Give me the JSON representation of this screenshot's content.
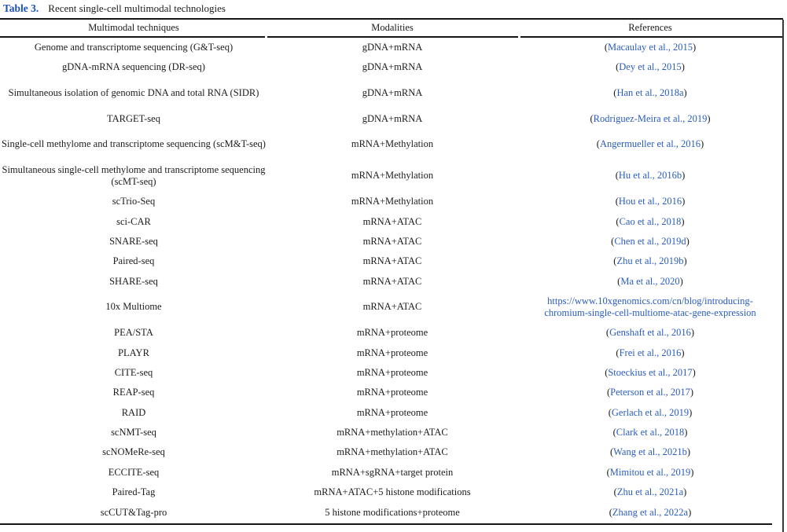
{
  "title": {
    "label": "Table 3.",
    "text": "Recent single-cell multimodal technologies"
  },
  "colors": {
    "link_blue": "#2a5cbf",
    "title_blue": "#1b50be",
    "text": "#1c1c1c",
    "rule": "#151515"
  },
  "table": {
    "headers": [
      "Multimodal techniques",
      "Modalities",
      "References"
    ],
    "rows": [
      {
        "technique": "Genome and transcriptome sequencing (G&T-seq)",
        "modality": "gDNA+mRNA",
        "ref_prefix": "(",
        "ref_link": "Macaulay et al., 2015",
        "ref_suffix": ")",
        "two_line": false,
        "url": false
      },
      {
        "technique": "gDNA-mRNA sequencing (DR-seq)",
        "modality": "gDNA+mRNA",
        "ref_prefix": "(",
        "ref_link": "Dey et al., 2015",
        "ref_suffix": ")",
        "two_line": false,
        "url": false
      },
      {
        "technique": "Simultaneous isolation of genomic DNA and total RNA (SIDR)",
        "modality": "gDNA+mRNA",
        "ref_prefix": "(",
        "ref_link": "Han et al., 2018a",
        "ref_suffix": ")",
        "two_line": true,
        "url": false
      },
      {
        "technique": "TARGET-seq",
        "modality": "gDNA+mRNA",
        "ref_prefix": "(",
        "ref_link": "Rodriguez-Meira et al., 2019",
        "ref_suffix": ")",
        "two_line": false,
        "url": false
      },
      {
        "technique": "Single-cell methylome and transcriptome sequencing (scM&T-seq)",
        "modality": "mRNA+Methylation",
        "ref_prefix": "(",
        "ref_link": "Angermueller et al., 2016",
        "ref_suffix": ")",
        "two_line": true,
        "url": false
      },
      {
        "technique": "Simultaneous single-cell methylome and transcriptome sequencing (scMT-seq)",
        "modality": "mRNA+Methylation",
        "ref_prefix": "(",
        "ref_link": "Hu et al., 2016b",
        "ref_suffix": ")",
        "two_line": true,
        "url": false
      },
      {
        "technique": "scTrio-Seq",
        "modality": "mRNA+Methylation",
        "ref_prefix": "(",
        "ref_link": "Hou et al., 2016",
        "ref_suffix": ")",
        "two_line": false,
        "url": false
      },
      {
        "technique": "sci-CAR",
        "modality": "mRNA+ATAC",
        "ref_prefix": "(",
        "ref_link": "Cao et al., 2018",
        "ref_suffix": ")",
        "two_line": false,
        "url": false
      },
      {
        "technique": "SNARE-seq",
        "modality": "mRNA+ATAC",
        "ref_prefix": "(",
        "ref_link": "Chen et al., 2019d",
        "ref_suffix": ")",
        "two_line": false,
        "url": false
      },
      {
        "technique": "Paired-seq",
        "modality": "mRNA+ATAC",
        "ref_prefix": "(",
        "ref_link": "Zhu et al., 2019b",
        "ref_suffix": ")",
        "two_line": false,
        "url": false
      },
      {
        "technique": "SHARE-seq",
        "modality": "mRNA+ATAC",
        "ref_prefix": "(",
        "ref_link": "Ma et al., 2020",
        "ref_suffix": ")",
        "two_line": false,
        "url": false
      },
      {
        "technique": "10x Multiome",
        "modality": "mRNA+ATAC",
        "ref_prefix": "",
        "ref_link": "https://www.10xgenomics.com/cn/blog/introducing-chromium-single-cell-multiome-atac-gene-expression",
        "ref_suffix": "",
        "two_line": true,
        "url": true
      },
      {
        "technique": "PEA/STA",
        "modality": "mRNA+proteome",
        "ref_prefix": "(",
        "ref_link": "Genshaft et al., 2016",
        "ref_suffix": ")",
        "two_line": false,
        "url": false
      },
      {
        "technique": "PLAYR",
        "modality": "mRNA+proteome",
        "ref_prefix": "(",
        "ref_link": "Frei et al., 2016",
        "ref_suffix": ")",
        "two_line": false,
        "url": false
      },
      {
        "technique": "CITE-seq",
        "modality": "mRNA+proteome",
        "ref_prefix": "(",
        "ref_link": "Stoeckius et al., 2017",
        "ref_suffix": ")",
        "two_line": false,
        "url": false
      },
      {
        "technique": "REAP-seq",
        "modality": "mRNA+proteome",
        "ref_prefix": "(",
        "ref_link": "Peterson et al., 2017",
        "ref_suffix": ")",
        "two_line": false,
        "url": false
      },
      {
        "technique": "RAID",
        "modality": "mRNA+proteome",
        "ref_prefix": "(",
        "ref_link": "Gerlach et al., 2019",
        "ref_suffix": ")",
        "two_line": false,
        "url": false
      },
      {
        "technique": "scNMT-seq",
        "modality": "mRNA+methylation+ATAC",
        "ref_prefix": "(",
        "ref_link": "Clark et al., 2018",
        "ref_suffix": ")",
        "two_line": false,
        "url": false
      },
      {
        "technique": "scNOMeRe-seq",
        "modality": "mRNA+methylation+ATAC",
        "ref_prefix": "(",
        "ref_link": "Wang et al., 2021b",
        "ref_suffix": ")",
        "two_line": false,
        "url": false
      },
      {
        "technique": "ECCITE-seq",
        "modality": "mRNA+sgRNA+target protein",
        "ref_prefix": "(",
        "ref_link": "Mimitou et al., 2019",
        "ref_suffix": ")",
        "two_line": false,
        "url": false
      },
      {
        "technique": "Paired-Tag",
        "modality": "mRNA+ATAC+5 histone modifications",
        "ref_prefix": "(",
        "ref_link": "Zhu et al., 2021a",
        "ref_suffix": ")",
        "two_line": false,
        "url": false
      },
      {
        "technique": "scCUT&Tag-pro",
        "modality": "5 histone modifications+proteome",
        "ref_prefix": "(",
        "ref_link": "Zhang et al., 2022a",
        "ref_suffix": ")",
        "two_line": false,
        "url": false
      }
    ]
  }
}
